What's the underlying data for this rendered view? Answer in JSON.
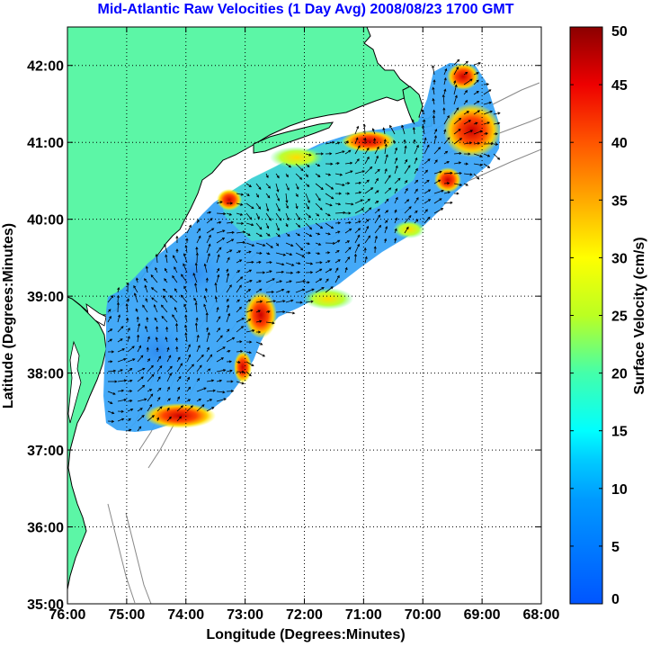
{
  "title": "Mid-Atlantic Raw Velocities (1 Day Avg) 2008/08/23 1700 GMT",
  "x_axis": {
    "label": "Longitude (Degrees:Minutes)",
    "ticks": [
      "76:00",
      "75:00",
      "74:00",
      "73:00",
      "72:00",
      "71:00",
      "70:00",
      "69:00",
      "68:00"
    ],
    "range": [
      -76,
      -68
    ]
  },
  "y_axis": {
    "label": "Latitude (Degrees:Minutes)",
    "ticks": [
      "35:00",
      "36:00",
      "37:00",
      "38:00",
      "39:00",
      "40:00",
      "41:00",
      "42:00"
    ],
    "range": [
      35,
      42.5
    ]
  },
  "colorbar": {
    "label": "Surface Velocity (cm/s)",
    "ticks": [
      "0",
      "5",
      "10",
      "15",
      "20",
      "25",
      "30",
      "35",
      "40",
      "45",
      "50"
    ],
    "range": [
      0,
      50
    ],
    "colormap": "jet"
  },
  "colors": {
    "land": "#5cf6a6",
    "title": "#0000ff",
    "coast": "#000000",
    "bathymetry": "#888888",
    "background": "#ffffff"
  }
}
